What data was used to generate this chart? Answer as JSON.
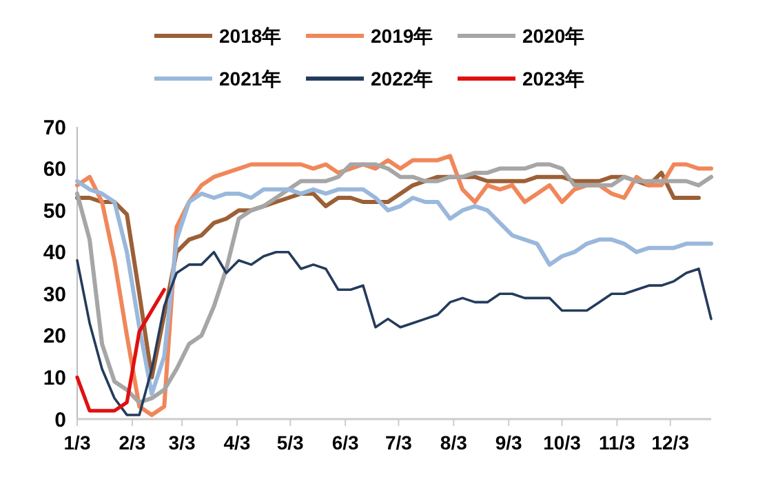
{
  "chart_data": {
    "type": "line",
    "x": [
      "--01-03",
      "--01-10",
      "--01-17",
      "--01-24",
      "--01-31",
      "--02-07",
      "--02-14",
      "--02-21",
      "--02-28",
      "--03-07",
      "--03-14",
      "--03-21",
      "--03-28",
      "--04-04",
      "--04-11",
      "--04-18",
      "--04-25",
      "--05-02",
      "--05-09",
      "--05-16",
      "--05-23",
      "--05-30",
      "--06-06",
      "--06-13",
      "--06-20",
      "--06-27",
      "--07-04",
      "--07-11",
      "--07-18",
      "--07-25",
      "--08-01",
      "--08-08",
      "--08-15",
      "--08-22",
      "--08-29",
      "--09-05",
      "--09-12",
      "--09-19",
      "--09-26",
      "--10-03",
      "--10-10",
      "--10-17",
      "--10-24",
      "--10-31",
      "--11-07",
      "--11-14",
      "--11-21",
      "--11-28",
      "--12-05",
      "--12-12",
      "--12-19",
      "--12-26"
    ],
    "series": [
      {
        "name": "2018年",
        "color": "#9c6036",
        "values": [
          53,
          53,
          52,
          52,
          49,
          30,
          10,
          25,
          40,
          43,
          44,
          47,
          48,
          50,
          50,
          51,
          52,
          53,
          54,
          54,
          51,
          53,
          53,
          52,
          52,
          52,
          54,
          56,
          57,
          58,
          58,
          58,
          58,
          57,
          57,
          57,
          57,
          58,
          58,
          58,
          57,
          57,
          57,
          58,
          58,
          57,
          56,
          59,
          53,
          53,
          53,
          null
        ]
      },
      {
        "name": "2019年",
        "color": "#f0875a",
        "values": [
          56,
          58,
          52,
          38,
          20,
          3,
          1,
          3,
          46,
          52,
          56,
          58,
          59,
          60,
          61,
          61,
          61,
          61,
          61,
          60,
          61,
          59,
          60,
          61,
          60,
          62,
          60,
          62,
          62,
          62,
          63,
          55,
          52,
          56,
          55,
          56,
          52,
          54,
          56,
          52,
          55,
          56,
          56,
          54,
          53,
          58,
          56,
          56,
          61,
          61,
          60,
          60
        ]
      },
      {
        "name": "2020年",
        "color": "#a6a6a6",
        "values": [
          54,
          43,
          18,
          9,
          7,
          4,
          5,
          7,
          12,
          18,
          20,
          27,
          36,
          48,
          50,
          51,
          53,
          55,
          57,
          57,
          57,
          58,
          61,
          61,
          61,
          60,
          58,
          58,
          57,
          57,
          58,
          58,
          59,
          59,
          60,
          60,
          60,
          61,
          61,
          60,
          56,
          56,
          56,
          56,
          58,
          57,
          57,
          57,
          57,
          57,
          56,
          58
        ]
      },
      {
        "name": "2021年",
        "color": "#9ab8dc",
        "values": [
          57,
          55,
          54,
          52,
          40,
          22,
          6,
          15,
          43,
          52,
          54,
          53,
          54,
          54,
          53,
          55,
          55,
          55,
          54,
          55,
          54,
          55,
          55,
          55,
          53,
          50,
          51,
          53,
          52,
          52,
          48,
          50,
          51,
          50,
          47,
          44,
          43,
          42,
          37,
          39,
          40,
          42,
          43,
          43,
          42,
          40,
          41,
          41,
          41,
          42,
          42,
          42
        ]
      },
      {
        "name": "2022年",
        "color": "#243b5c",
        "values": [
          38,
          23,
          12,
          5,
          1,
          1,
          12,
          27,
          35,
          37,
          37,
          40,
          35,
          38,
          37,
          39,
          40,
          40,
          36,
          37,
          36,
          31,
          31,
          32,
          22,
          24,
          22,
          23,
          24,
          25,
          28,
          29,
          28,
          28,
          30,
          30,
          29,
          29,
          29,
          26,
          26,
          26,
          28,
          30,
          30,
          31,
          32,
          32,
          33,
          35,
          36,
          24
        ]
      },
      {
        "name": "2023年",
        "color": "#e01010",
        "values": [
          10,
          2,
          2,
          2,
          4,
          21,
          26,
          31,
          null,
          null,
          null,
          null,
          null,
          null,
          null,
          null,
          null,
          null,
          null,
          null,
          null,
          null,
          null,
          null,
          null,
          null,
          null,
          null,
          null,
          null,
          null,
          null,
          null,
          null,
          null,
          null,
          null,
          null,
          null,
          null,
          null,
          null,
          null,
          null,
          null,
          null,
          null,
          null,
          null,
          null,
          null,
          null
        ]
      }
    ],
    "xlim": [
      "--01-03",
      "--12-26"
    ],
    "xticks": [
      {
        "value": "--01-03",
        "label": "1/3"
      },
      {
        "value": "--02-03",
        "label": "2/3"
      },
      {
        "value": "--03-03",
        "label": "3/3"
      },
      {
        "value": "--04-03",
        "label": "4/3"
      },
      {
        "value": "--05-03",
        "label": "5/3"
      },
      {
        "value": "--06-03",
        "label": "6/3"
      },
      {
        "value": "--07-03",
        "label": "7/3"
      },
      {
        "value": "--08-03",
        "label": "8/3"
      },
      {
        "value": "--09-03",
        "label": "9/3"
      },
      {
        "value": "--10-03",
        "label": "10/3"
      },
      {
        "value": "--11-03",
        "label": "11/3"
      },
      {
        "value": "--12-03",
        "label": "12/3"
      }
    ],
    "ylim": [
      0,
      70
    ],
    "yticks": [
      0,
      10,
      20,
      30,
      40,
      50,
      60,
      70
    ],
    "grid": false,
    "legend": "top",
    "line_style": "solid",
    "marker": "none"
  }
}
